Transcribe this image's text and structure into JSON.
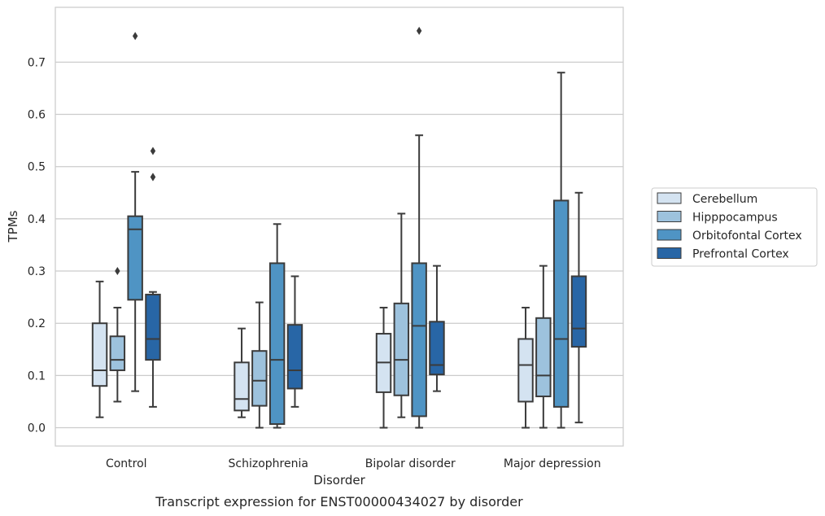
{
  "chart_data": {
    "type": "box",
    "caption": "Transcript expression for ENST00000434027 by disorder",
    "xlabel": "Disorder",
    "ylabel": "TPMs",
    "ylim": [
      -0.035,
      0.805
    ],
    "yticks": [
      "0.0",
      "0.1",
      "0.2",
      "0.3",
      "0.4",
      "0.5",
      "0.6",
      "0.7"
    ],
    "categories": [
      "Control",
      "Schizophrenia",
      "Bipolar disorder",
      "Major depression"
    ],
    "grid": true,
    "legend_position": "right",
    "series": [
      {
        "name": "Cerebellum",
        "color": "#d4e3f1",
        "boxes": [
          {
            "whislo": 0.02,
            "q1": 0.08,
            "med": 0.11,
            "q3": 0.2,
            "whishi": 0.28,
            "fliers": []
          },
          {
            "whislo": 0.02,
            "q1": 0.033,
            "med": 0.055,
            "q3": 0.125,
            "whishi": 0.19,
            "fliers": []
          },
          {
            "whislo": 0.0,
            "q1": 0.068,
            "med": 0.125,
            "q3": 0.18,
            "whishi": 0.23,
            "fliers": []
          },
          {
            "whislo": 0.0,
            "q1": 0.05,
            "med": 0.12,
            "q3": 0.17,
            "whishi": 0.23,
            "fliers": []
          }
        ]
      },
      {
        "name": "Hipppocampus",
        "color": "#9dc2dd",
        "boxes": [
          {
            "whislo": 0.05,
            "q1": 0.11,
            "med": 0.13,
            "q3": 0.175,
            "whishi": 0.23,
            "fliers": [
              0.3
            ]
          },
          {
            "whislo": 0.0,
            "q1": 0.042,
            "med": 0.09,
            "q3": 0.147,
            "whishi": 0.24,
            "fliers": []
          },
          {
            "whislo": 0.02,
            "q1": 0.062,
            "med": 0.13,
            "q3": 0.238,
            "whishi": 0.41,
            "fliers": []
          },
          {
            "whislo": 0.0,
            "q1": 0.06,
            "med": 0.1,
            "q3": 0.21,
            "whishi": 0.31,
            "fliers": []
          }
        ]
      },
      {
        "name": "Orbitofontal Cortex",
        "color": "#4f94c4",
        "boxes": [
          {
            "whislo": 0.07,
            "q1": 0.245,
            "med": 0.38,
            "q3": 0.405,
            "whishi": 0.49,
            "fliers": [
              0.75
            ]
          },
          {
            "whislo": 0.0,
            "q1": 0.007,
            "med": 0.13,
            "q3": 0.315,
            "whishi": 0.39,
            "fliers": []
          },
          {
            "whislo": 0.0,
            "q1": 0.022,
            "med": 0.195,
            "q3": 0.315,
            "whishi": 0.56,
            "fliers": [
              0.76
            ]
          },
          {
            "whislo": 0.0,
            "q1": 0.04,
            "med": 0.17,
            "q3": 0.435,
            "whishi": 0.68,
            "fliers": []
          }
        ]
      },
      {
        "name": "Prefrontal Cortex",
        "color": "#2866a6",
        "boxes": [
          {
            "whislo": 0.04,
            "q1": 0.13,
            "med": 0.17,
            "q3": 0.255,
            "whishi": 0.26,
            "fliers": [
              0.48,
              0.48,
              0.53
            ]
          },
          {
            "whislo": 0.04,
            "q1": 0.075,
            "med": 0.11,
            "q3": 0.197,
            "whishi": 0.29,
            "fliers": []
          },
          {
            "whislo": 0.07,
            "q1": 0.102,
            "med": 0.12,
            "q3": 0.203,
            "whishi": 0.31,
            "fliers": []
          },
          {
            "whislo": 0.01,
            "q1": 0.155,
            "med": 0.19,
            "q3": 0.29,
            "whishi": 0.45,
            "fliers": []
          }
        ]
      }
    ]
  }
}
